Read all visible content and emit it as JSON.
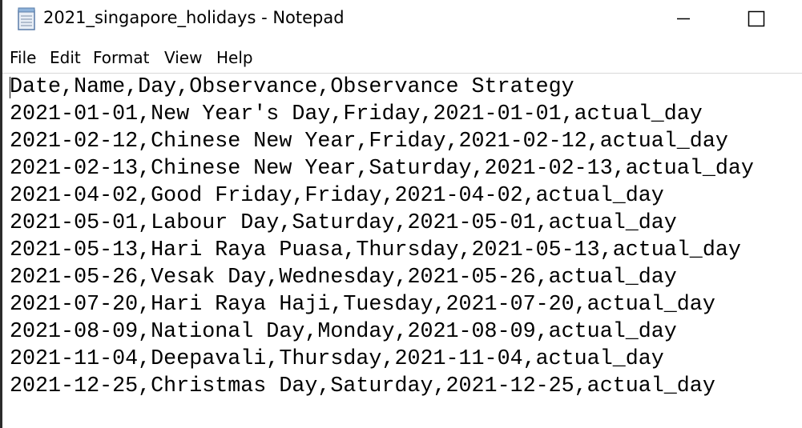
{
  "window": {
    "title": "2021_singapore_holidays - Notepad"
  },
  "menu": [
    "File",
    "Edit",
    "Format",
    "View",
    "Help"
  ],
  "document": {
    "lines": [
      "Date,Name,Day,Observance,Observance Strategy",
      "2021-01-01,New Year's Day,Friday,2021-01-01,actual_day",
      "2021-02-12,Chinese New Year,Friday,2021-02-12,actual_day",
      "2021-02-13,Chinese New Year,Saturday,2021-02-13,actual_day",
      "2021-04-02,Good Friday,Friday,2021-04-02,actual_day",
      "2021-05-01,Labour Day,Saturday,2021-05-01,actual_day",
      "2021-05-13,Hari Raya Puasa,Thursday,2021-05-13,actual_day",
      "2021-05-26,Vesak Day,Wednesday,2021-05-26,actual_day",
      "2021-07-20,Hari Raya Haji,Tuesday,2021-07-20,actual_day",
      "2021-08-09,National Day,Monday,2021-08-09,actual_day",
      "2021-11-04,Deepavali,Thursday,2021-11-04,actual_day",
      "2021-12-25,Christmas Day,Saturday,2021-12-25,actual_day"
    ]
  }
}
